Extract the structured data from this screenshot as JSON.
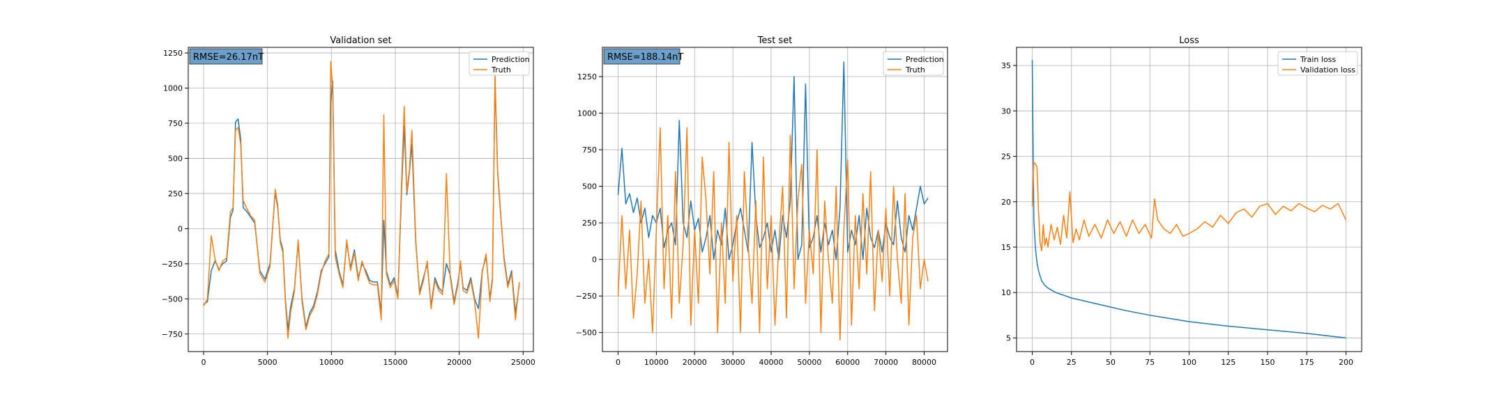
{
  "colors": {
    "prediction": "#1f77b4",
    "truth": "#ff7f0e",
    "rmse_box": "#6b9fcc",
    "grid": "#b0b0b0"
  },
  "chart_data": [
    {
      "type": "line",
      "title": "Validation set",
      "xlabel": "",
      "ylabel": "",
      "xlim": [
        -1200,
        25800
      ],
      "ylim": [
        -875,
        1290
      ],
      "xticks": [
        0,
        5000,
        10000,
        15000,
        20000,
        25000
      ],
      "xtick_labels": [
        "0",
        "5000",
        "10000",
        "15000",
        "20000",
        "25000"
      ],
      "yticks": [
        -750,
        -500,
        -250,
        0,
        250,
        500,
        750,
        1000,
        1250
      ],
      "ytick_labels": [
        "−750",
        "−500",
        "−250",
        "0",
        "250",
        "500",
        "750",
        "1000",
        "1250"
      ],
      "grid": true,
      "legend": "top-right",
      "annotation": "RMSE=26.17nT",
      "series": [
        {
          "name": "Prediction",
          "color": "#1f77b4",
          "x": [
            0,
            300,
            600,
            900,
            1200,
            1500,
            1800,
            2100,
            2300,
            2500,
            2700,
            2900,
            3100,
            3400,
            3700,
            4000,
            4400,
            4800,
            5200,
            5600,
            5800,
            6000,
            6200,
            6400,
            6600,
            6800,
            7100,
            7400,
            7700,
            8000,
            8300,
            8600,
            8900,
            9200,
            9500,
            9800,
            9950,
            10100,
            10300,
            10600,
            10900,
            11200,
            11500,
            11800,
            12100,
            12400,
            12700,
            13000,
            13300,
            13600,
            13900,
            14100,
            14300,
            14600,
            14900,
            15200,
            15500,
            15700,
            15900,
            16100,
            16300,
            16600,
            16900,
            17200,
            17500,
            17800,
            18100,
            18400,
            18700,
            19000,
            19300,
            19600,
            19900,
            20100,
            20300,
            20600,
            20900,
            21200,
            21500,
            21800,
            22100,
            22400,
            22600,
            22800,
            23000,
            23200,
            23500,
            23800,
            24100,
            24400,
            24700
          ],
          "y": [
            -540,
            -520,
            -300,
            -230,
            -290,
            -250,
            -230,
            80,
            130,
            760,
            780,
            640,
            150,
            120,
            80,
            40,
            -300,
            -360,
            -250,
            260,
            150,
            -80,
            -150,
            -500,
            -720,
            -560,
            -430,
            -100,
            -500,
            -700,
            -600,
            -550,
            -450,
            -300,
            -250,
            -200,
            900,
            1050,
            -150,
            -300,
            -400,
            -100,
            -280,
            -150,
            -350,
            -250,
            -300,
            -370,
            -380,
            -380,
            -600,
            60,
            -300,
            -400,
            -350,
            -480,
            300,
            730,
            240,
            400,
            600,
            -100,
            -450,
            -350,
            -250,
            -550,
            -350,
            -420,
            -450,
            -250,
            -330,
            -520,
            -380,
            -250,
            -420,
            -440,
            -350,
            -500,
            -570,
            -300,
            -200,
            -500,
            -350,
            1050,
            400,
            150,
            -200,
            -400,
            -300,
            -600,
            -400
          ]
        },
        {
          "name": "Truth",
          "color": "#ff7f0e",
          "x": [
            0,
            300,
            600,
            900,
            1200,
            1500,
            1800,
            2100,
            2300,
            2500,
            2700,
            2900,
            3100,
            3400,
            3700,
            4000,
            4400,
            4800,
            5200,
            5600,
            5800,
            6000,
            6200,
            6400,
            6600,
            6800,
            7100,
            7400,
            7700,
            8000,
            8300,
            8600,
            8900,
            9200,
            9500,
            9800,
            9950,
            10100,
            10300,
            10600,
            10900,
            11200,
            11500,
            11800,
            12100,
            12400,
            12700,
            13000,
            13300,
            13600,
            13900,
            14100,
            14300,
            14600,
            14900,
            15200,
            15500,
            15700,
            15900,
            16100,
            16300,
            16600,
            16900,
            17200,
            17500,
            17800,
            18100,
            18400,
            18700,
            19000,
            19300,
            19600,
            19900,
            20100,
            20300,
            20600,
            20900,
            21200,
            21500,
            21800,
            22100,
            22400,
            22600,
            22800,
            23000,
            23200,
            23500,
            23800,
            24100,
            24400,
            24700
          ],
          "y": [
            -550,
            -500,
            -50,
            -220,
            -300,
            -230,
            -210,
            120,
            150,
            700,
            720,
            600,
            200,
            140,
            90,
            60,
            -320,
            -380,
            -270,
            280,
            170,
            -100,
            -170,
            -520,
            -780,
            -600,
            -450,
            -80,
            -520,
            -720,
            -620,
            -570,
            -470,
            -320,
            -230,
            -180,
            1190,
            1000,
            -200,
            -320,
            -420,
            -80,
            -300,
            -170,
            -370,
            -230,
            -320,
            -390,
            -400,
            -400,
            -650,
            810,
            -320,
            -420,
            -370,
            -500,
            370,
            870,
            260,
            420,
            700,
            -80,
            -470,
            -370,
            -230,
            -570,
            -370,
            -440,
            -470,
            390,
            -350,
            -540,
            -400,
            -230,
            -440,
            -460,
            -370,
            -520,
            -780,
            -310,
            -180,
            -520,
            -370,
            1100,
            420,
            170,
            -220,
            -420,
            -320,
            -650,
            -380
          ]
        }
      ]
    },
    {
      "type": "line",
      "title": "Test set",
      "xlabel": "",
      "ylabel": "",
      "xlim": [
        -4100,
        86100
      ],
      "ylim": [
        -630,
        1450
      ],
      "xticks": [
        0,
        10000,
        20000,
        30000,
        40000,
        50000,
        60000,
        70000,
        80000
      ],
      "xtick_labels": [
        "0",
        "10000",
        "20000",
        "30000",
        "40000",
        "50000",
        "60000",
        "70000",
        "80000"
      ],
      "yticks": [
        -500,
        -250,
        0,
        250,
        500,
        750,
        1000,
        1250
      ],
      "ytick_labels": [
        "−500",
        "−250",
        "0",
        "250",
        "500",
        "750",
        "1000",
        "1250"
      ],
      "grid": true,
      "legend": "top-right",
      "annotation": "RMSE=188.14nT",
      "series": [
        {
          "name": "Prediction",
          "color": "#1f77b4",
          "x": [
            0,
            1000,
            2000,
            3000,
            4000,
            5000,
            6000,
            7000,
            8000,
            9000,
            10000,
            11000,
            12000,
            13000,
            14000,
            15000,
            16000,
            17000,
            18000,
            19000,
            20000,
            21000,
            22000,
            23000,
            24000,
            25000,
            26000,
            27000,
            28000,
            29000,
            30000,
            31000,
            32000,
            33000,
            34000,
            35000,
            36000,
            37000,
            38000,
            39000,
            40000,
            41000,
            42000,
            43000,
            44000,
            45000,
            46000,
            47000,
            48000,
            49000,
            50000,
            51000,
            52000,
            53000,
            54000,
            55000,
            56000,
            57000,
            58000,
            59000,
            60000,
            61000,
            62000,
            63000,
            64000,
            65000,
            66000,
            67000,
            68000,
            69000,
            70000,
            71000,
            72000,
            73000,
            74000,
            75000,
            76000,
            77000,
            78000,
            79000,
            80000,
            81000
          ],
          "y": [
            440,
            760,
            380,
            450,
            320,
            420,
            250,
            350,
            150,
            300,
            250,
            350,
            80,
            200,
            250,
            100,
            950,
            250,
            150,
            400,
            200,
            280,
            50,
            150,
            300,
            0,
            200,
            100,
            350,
            0,
            100,
            250,
            350,
            200,
            50,
            800,
            300,
            80,
            150,
            250,
            50,
            200,
            0,
            300,
            150,
            400,
            1250,
            0,
            100,
            1200,
            80,
            150,
            300,
            50,
            250,
            100,
            200,
            0,
            350,
            1350,
            50,
            200,
            100,
            300,
            0,
            350,
            150,
            80,
            200,
            50,
            250,
            150,
            100,
            400,
            150,
            50,
            300,
            200,
            350,
            500,
            380,
            420
          ]
        },
        {
          "name": "Truth",
          "color": "#ff7f0e",
          "x": [
            0,
            1000,
            2000,
            3000,
            4000,
            5000,
            6000,
            7000,
            8000,
            9000,
            10000,
            11000,
            12000,
            13000,
            14000,
            15000,
            16000,
            17000,
            18000,
            19000,
            20000,
            21000,
            22000,
            23000,
            24000,
            25000,
            26000,
            27000,
            28000,
            29000,
            30000,
            31000,
            32000,
            33000,
            34000,
            35000,
            36000,
            37000,
            38000,
            39000,
            40000,
            41000,
            42000,
            43000,
            44000,
            45000,
            46000,
            47000,
            48000,
            49000,
            50000,
            51000,
            52000,
            53000,
            54000,
            55000,
            56000,
            57000,
            58000,
            59000,
            60000,
            61000,
            62000,
            63000,
            64000,
            65000,
            66000,
            67000,
            68000,
            69000,
            70000,
            71000,
            72000,
            73000,
            74000,
            75000,
            76000,
            77000,
            78000,
            79000,
            80000,
            81000
          ],
          "y": [
            -250,
            300,
            -200,
            200,
            -400,
            -100,
            400,
            -300,
            0,
            -500,
            200,
            900,
            -200,
            300,
            -400,
            600,
            -300,
            100,
            900,
            -450,
            200,
            -300,
            700,
            400,
            -100,
            600,
            -500,
            250,
            -300,
            800,
            -150,
            300,
            -500,
            600,
            100,
            -300,
            400,
            -500,
            700,
            -200,
            300,
            -450,
            100,
            500,
            -400,
            850,
            -200,
            400,
            650,
            -300,
            200,
            -100,
            750,
            -500,
            400,
            0,
            -300,
            500,
            -550,
            200,
            680,
            -450,
            300,
            -200,
            450,
            -100,
            600,
            -350,
            200,
            -150,
            350,
            -250,
            500,
            0,
            -300,
            450,
            -450,
            150,
            300,
            -200,
            0,
            -150
          ]
        }
      ]
    },
    {
      "type": "line",
      "title": "Loss",
      "xlabel": "",
      "ylabel": "",
      "xlim": [
        -10,
        210
      ],
      "ylim": [
        3.5,
        37
      ],
      "xticks": [
        0,
        25,
        50,
        75,
        100,
        125,
        150,
        175,
        200
      ],
      "xtick_labels": [
        "0",
        "25",
        "50",
        "75",
        "100",
        "125",
        "150",
        "175",
        "200"
      ],
      "yticks": [
        5,
        10,
        15,
        20,
        25,
        30,
        35
      ],
      "ytick_labels": [
        "5",
        "10",
        "15",
        "20",
        "25",
        "30",
        "35"
      ],
      "grid": true,
      "legend": "top-right",
      "series": [
        {
          "name": "Train loss",
          "color": "#1f77b4",
          "x": [
            0,
            1,
            2,
            3,
            4,
            5,
            6,
            8,
            10,
            12,
            15,
            20,
            25,
            30,
            40,
            50,
            60,
            75,
            100,
            125,
            150,
            175,
            200
          ],
          "y": [
            35.6,
            18,
            15,
            13.3,
            12.4,
            11.8,
            11.3,
            10.8,
            10.5,
            10.3,
            10.0,
            9.7,
            9.4,
            9.2,
            8.8,
            8.4,
            8.0,
            7.5,
            6.8,
            6.3,
            5.9,
            5.5,
            5.0
          ]
        },
        {
          "name": "Validation loss",
          "color": "#ff7f0e",
          "x": [
            0,
            1,
            2,
            3,
            4,
            5,
            6,
            7,
            8,
            9,
            10,
            12,
            14,
            16,
            18,
            20,
            22,
            24,
            26,
            28,
            30,
            33,
            36,
            40,
            44,
            48,
            52,
            56,
            60,
            64,
            68,
            72,
            76,
            78,
            80,
            84,
            88,
            92,
            96,
            100,
            105,
            110,
            115,
            120,
            125,
            130,
            135,
            140,
            145,
            150,
            155,
            160,
            165,
            170,
            175,
            180,
            185,
            190,
            195,
            200
          ],
          "y": [
            19.5,
            24.3,
            24.2,
            23.8,
            19.0,
            15.5,
            14.6,
            17.5,
            15.2,
            16.0,
            15.0,
            17.5,
            15.8,
            17.2,
            15.3,
            18.5,
            16.0,
            21.1,
            15.5,
            17.0,
            15.8,
            18.0,
            16.2,
            17.5,
            16.0,
            18.0,
            16.5,
            17.8,
            16.2,
            18.0,
            16.5,
            17.5,
            16.0,
            20.3,
            18.0,
            17.0,
            16.5,
            17.5,
            16.2,
            16.5,
            17.0,
            17.8,
            17.2,
            18.5,
            17.6,
            18.8,
            19.2,
            18.3,
            19.5,
            19.8,
            18.6,
            19.5,
            19.0,
            19.8,
            19.3,
            18.9,
            19.6,
            19.2,
            19.8,
            18.0
          ]
        }
      ]
    }
  ]
}
